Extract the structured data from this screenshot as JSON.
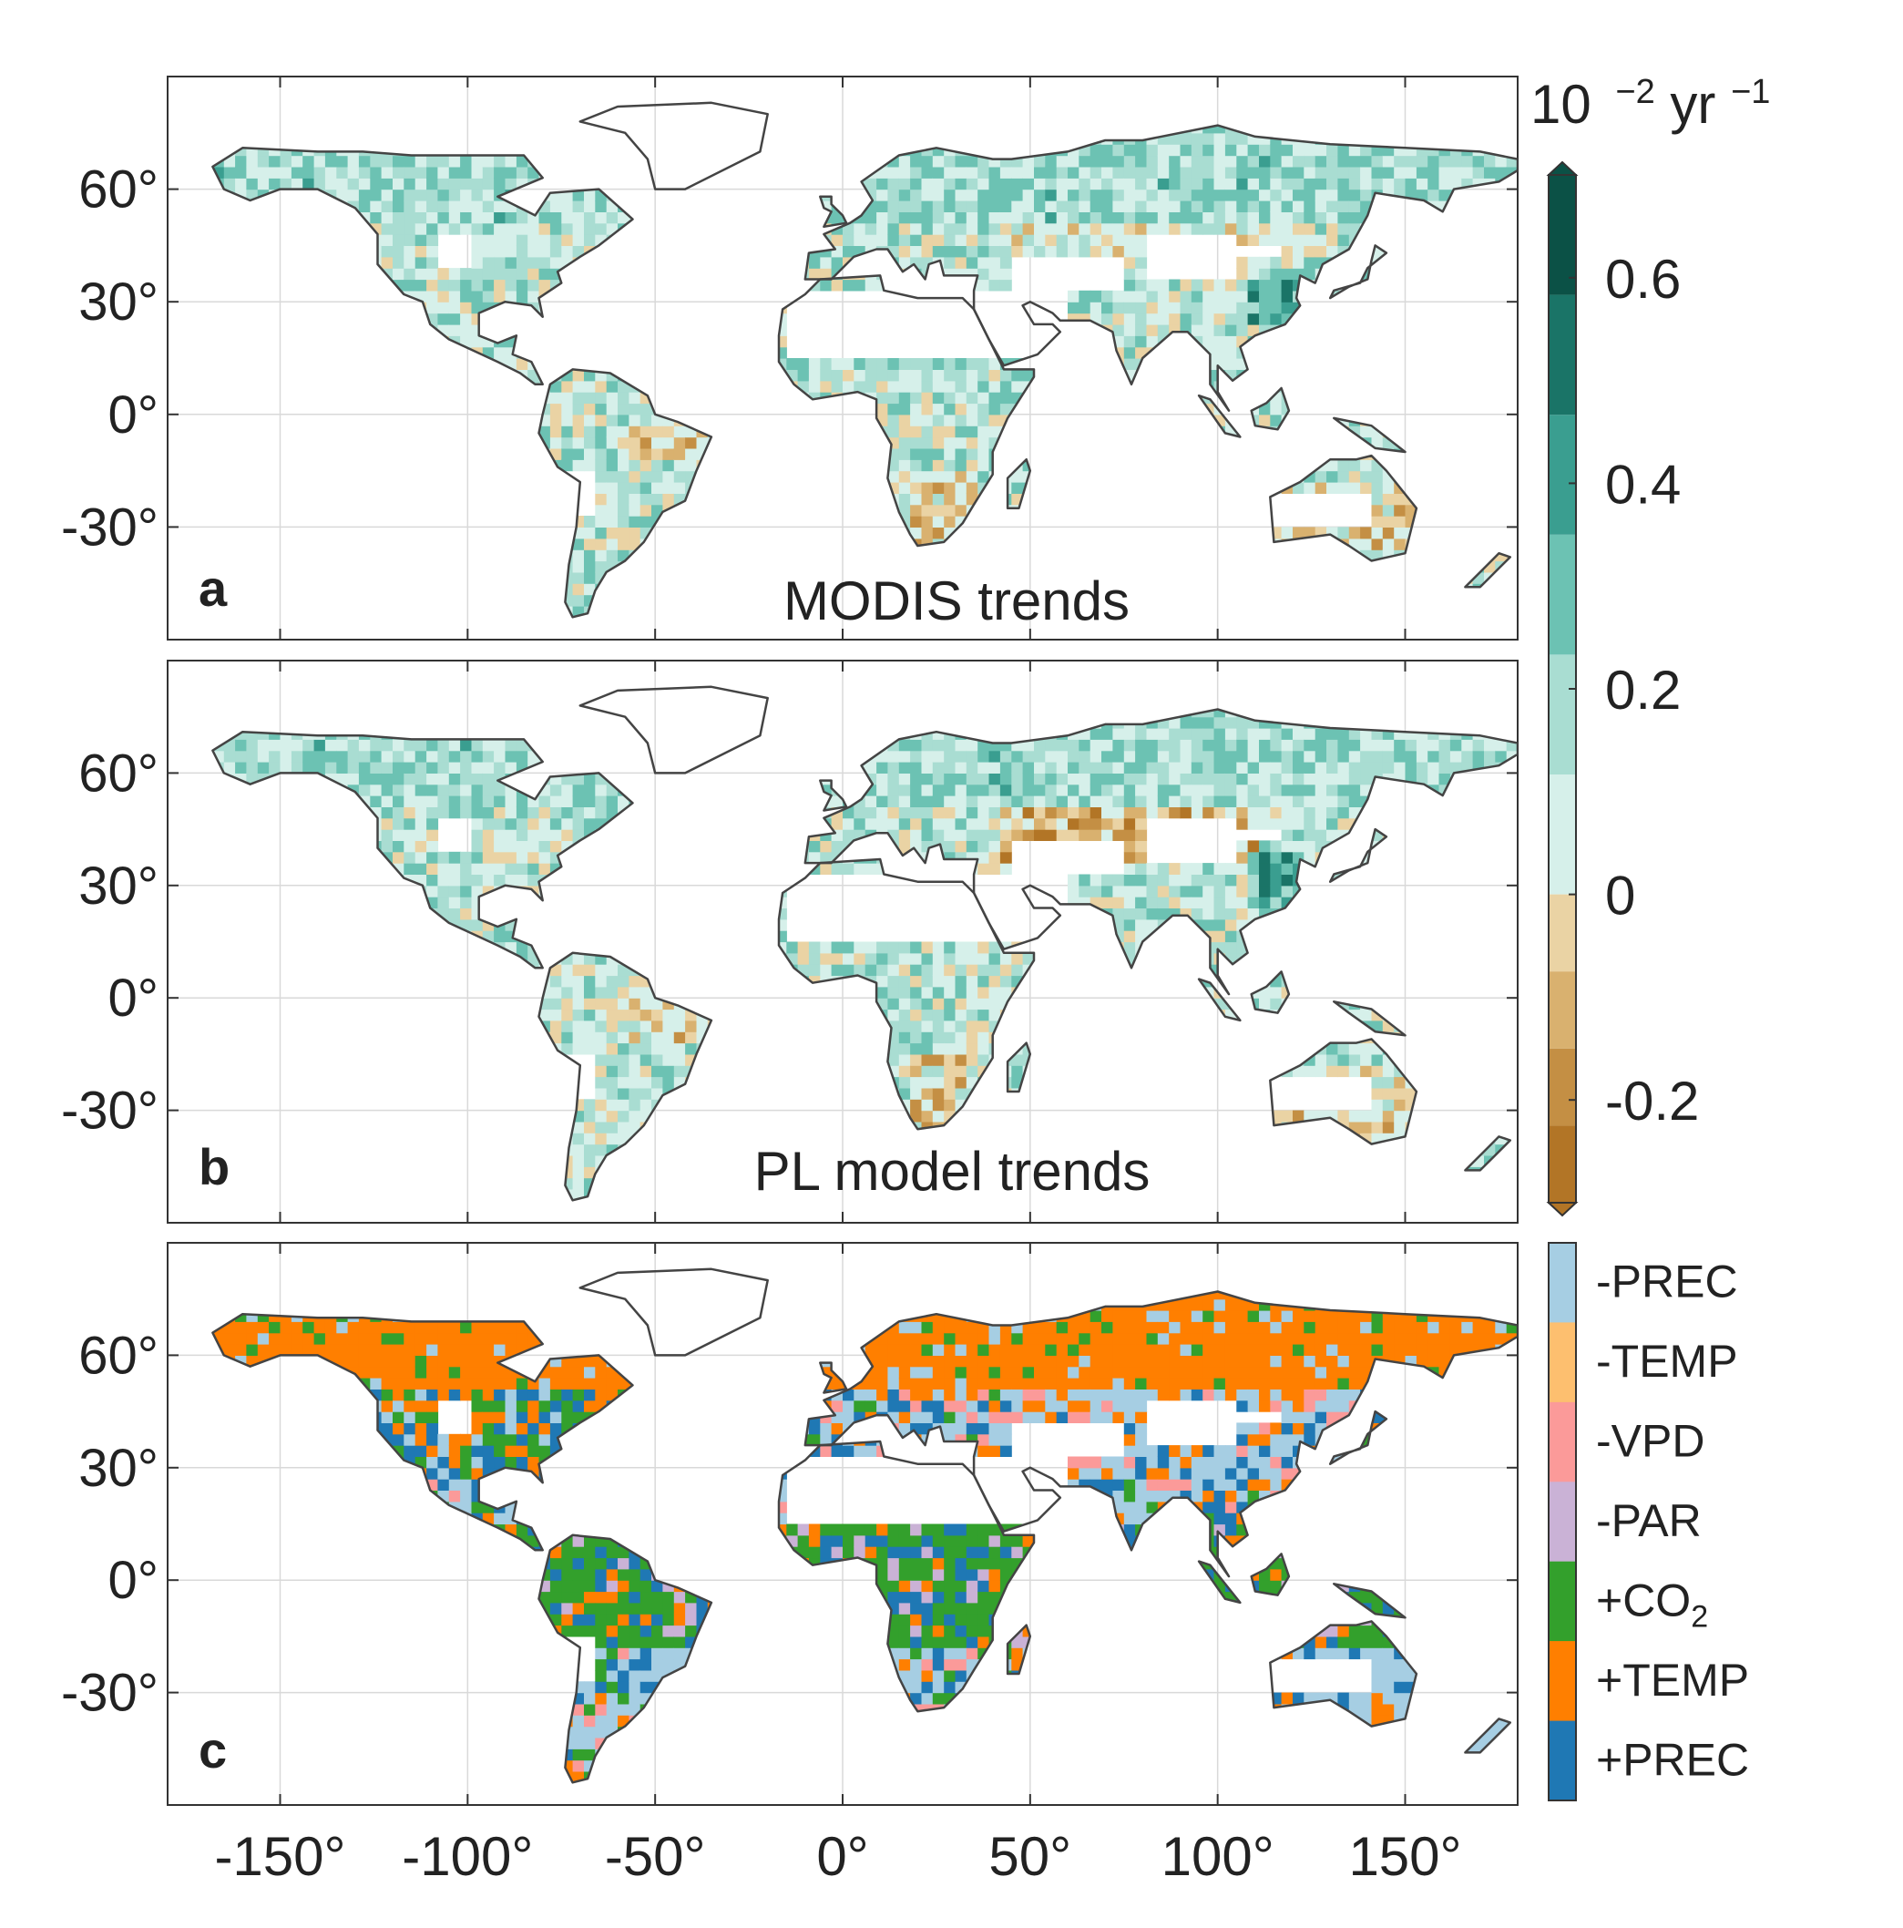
{
  "panels": [
    {
      "letter": "a",
      "title": "MODIS trends",
      "kind": "trend"
    },
    {
      "letter": "b",
      "title": "PL model trends",
      "kind": "trend"
    },
    {
      "letter": "c",
      "title": "",
      "kind": "category"
    }
  ],
  "lat_tick_labels": [
    "60°",
    "30°",
    "0°",
    "-30°"
  ],
  "lat_ticks": [
    60,
    30,
    0,
    -30
  ],
  "lon_tick_labels": [
    "-150°",
    "-100°",
    "-50°",
    "0°",
    "50°",
    "100°",
    "150°"
  ],
  "lon_ticks": [
    -150,
    -100,
    -50,
    0,
    50,
    100,
    150
  ],
  "extent": {
    "lon": [
      -180,
      180
    ],
    "lat": [
      -60,
      90
    ]
  },
  "colorbar": {
    "unit_base": "10",
    "unit_exp": "−2",
    "unit_rest": " yr",
    "unit_exp2": "−1",
    "tick_labels": [
      "0.6",
      "0.4",
      "0.2",
      "0",
      "-0.2"
    ],
    "ticks": [
      0.6,
      0.4,
      0.2,
      0,
      -0.2
    ],
    "range": [
      -0.3,
      0.7
    ],
    "colors_pos": [
      "#d6f0ea",
      "#a9ddd2",
      "#6cc2b3",
      "#3a9e90",
      "#1a7467",
      "#0b5146"
    ],
    "colors_neg": [
      "#ead3a4",
      "#d9b16f",
      "#c48f44",
      "#b27526"
    ]
  },
  "categories": [
    {
      "label": "-PREC",
      "base": "-PREC",
      "sub": "",
      "color": "#a6cee3"
    },
    {
      "label": "-TEMP",
      "base": "-TEMP",
      "sub": "",
      "color": "#fdbf6f"
    },
    {
      "label": "-VPD",
      "base": "-VPD",
      "sub": "",
      "color": "#fb9a99"
    },
    {
      "label": "-PAR",
      "base": "-PAR",
      "sub": "",
      "color": "#cab2d6"
    },
    {
      "label": "+CO2",
      "base": "+CO",
      "sub": "2",
      "color": "#33a02c"
    },
    {
      "label": "+TEMP",
      "base": "+TEMP",
      "sub": "",
      "color": "#ff7f00"
    },
    {
      "label": "+PREC",
      "base": "+PREC",
      "sub": "",
      "color": "#1f78b4"
    }
  ],
  "colors": {
    "coastline": "#444444",
    "grid": "#d9d9d9",
    "axis": "#333333"
  }
}
